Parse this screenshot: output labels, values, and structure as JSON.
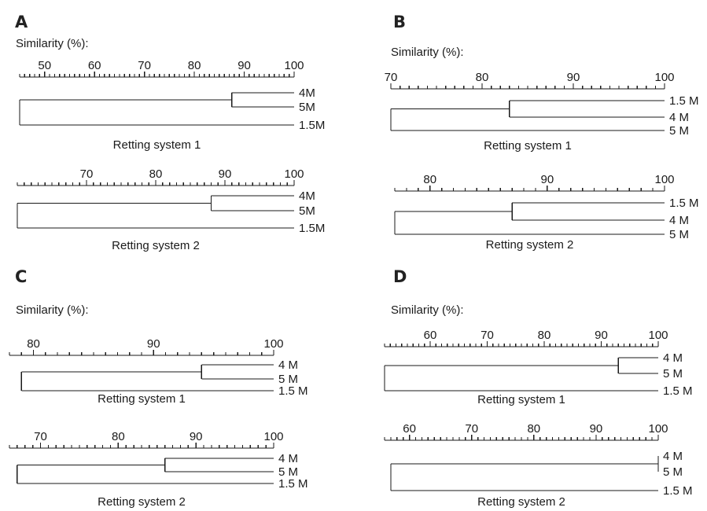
{
  "axis_title": "Similarity (%):",
  "panels": [
    {
      "letter": "A",
      "dendrograms": [
        {
          "caption": "Retting system 1",
          "axis": {
            "min": 45,
            "max": 100,
            "major": [
              50,
              60,
              70,
              80,
              90,
              100
            ],
            "minor_step": 1
          },
          "leaves": [
            "4M",
            "5M",
            "1.5M"
          ],
          "merges": [
            {
              "a": 0,
              "b": 1,
              "similarity": 87.5
            },
            {
              "a": 0,
              "b": 2,
              "similarity": 45
            }
          ]
        },
        {
          "caption": "Retting system 2",
          "axis": {
            "min": 60,
            "max": 100,
            "major": [
              70,
              80,
              90,
              100
            ],
            "minor_step": 1
          },
          "leaves": [
            "4M",
            "5M",
            "1.5M"
          ],
          "merges": [
            {
              "a": 0,
              "b": 1,
              "similarity": 88
            },
            {
              "a": 0,
              "b": 2,
              "similarity": 60
            }
          ]
        }
      ]
    },
    {
      "letter": "B",
      "dendrograms": [
        {
          "caption": "Retting system 1",
          "axis": {
            "min": 70,
            "max": 100,
            "major": [
              70,
              80,
              90,
              100
            ],
            "minor_step": 1
          },
          "leaves": [
            "1.5 M",
            "4 M",
            "5 M"
          ],
          "merges": [
            {
              "a": 0,
              "b": 1,
              "similarity": 83
            },
            {
              "a": 0,
              "b": 2,
              "similarity": 70
            }
          ]
        },
        {
          "caption": "Retting system 2",
          "axis": {
            "min": 77,
            "max": 100,
            "major": [
              80,
              90,
              100
            ],
            "minor_step": 1
          },
          "leaves": [
            "1.5 M",
            "4 M",
            "5 M"
          ],
          "merges": [
            {
              "a": 0,
              "b": 1,
              "similarity": 87
            },
            {
              "a": 0,
              "b": 2,
              "similarity": 77
            }
          ]
        }
      ]
    },
    {
      "letter": "C",
      "dendrograms": [
        {
          "caption": "Retting system 1",
          "axis": {
            "min": 78,
            "max": 100,
            "major": [
              80,
              90,
              100
            ],
            "minor_step": 1
          },
          "leaves": [
            "4 M",
            "5 M",
            "1.5 M"
          ],
          "merges": [
            {
              "a": 0,
              "b": 1,
              "similarity": 94
            },
            {
              "a": 0,
              "b": 2,
              "similarity": 79
            }
          ]
        },
        {
          "caption": "Retting system 2",
          "axis": {
            "min": 66,
            "max": 100,
            "major": [
              70,
              80,
              90,
              100
            ],
            "minor_step": 1
          },
          "leaves": [
            "4 M",
            "5 M",
            "1.5 M"
          ],
          "merges": [
            {
              "a": 0,
              "b": 1,
              "similarity": 86
            },
            {
              "a": 0,
              "b": 2,
              "similarity": 67
            }
          ]
        }
      ]
    },
    {
      "letter": "D",
      "dendrograms": [
        {
          "caption": "Retting system 1",
          "axis": {
            "min": 52,
            "max": 100,
            "major": [
              60,
              70,
              80,
              90,
              100
            ],
            "minor_step": 1
          },
          "leaves": [
            "4 M",
            "5 M",
            "1.5 M"
          ],
          "merges": [
            {
              "a": 0,
              "b": 1,
              "similarity": 93
            },
            {
              "a": 0,
              "b": 2,
              "similarity": 52
            }
          ]
        },
        {
          "caption": "Retting system 2",
          "axis": {
            "min": 56,
            "max": 100,
            "major": [
              60,
              70,
              80,
              90,
              100
            ],
            "minor_step": 1
          },
          "leaves": [
            "4 M",
            "5 M",
            "1.5 M"
          ],
          "merges": [
            {
              "a": 0,
              "b": 1,
              "similarity": 100
            },
            {
              "a": 0,
              "b": 2,
              "similarity": 57
            }
          ]
        }
      ]
    }
  ]
}
